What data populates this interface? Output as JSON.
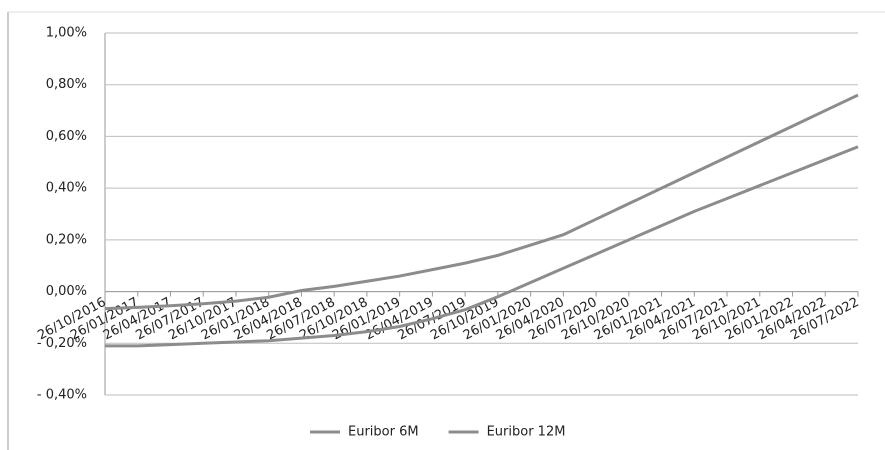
{
  "chart_data": {
    "type": "line",
    "categories": [
      "26/10/2016",
      "26/01/2017",
      "26/04/2017",
      "26/07/2017",
      "26/10/2017",
      "26/01/2018",
      "26/04/2018",
      "26/07/2018",
      "26/10/2018",
      "26/01/2019",
      "26/04/2019",
      "26/07/2019",
      "26/10/2019",
      "26/01/2020",
      "26/04/2020",
      "26/07/2020",
      "26/10/2020",
      "26/01/2021",
      "26/04/2021",
      "26/07/2021",
      "26/10/2021",
      "26/01/2022",
      "26/04/2022",
      "26/07/2022"
    ],
    "series": [
      {
        "name": "Euribor 6M",
        "color": "#8c8c8c",
        "values": [
          -0.21,
          -0.21,
          -0.205,
          -0.2,
          -0.195,
          -0.19,
          -0.18,
          -0.17,
          -0.155,
          -0.135,
          -0.105,
          -0.07,
          -0.02,
          0.035,
          0.09,
          0.145,
          0.2,
          0.255,
          0.31,
          0.36,
          0.41,
          0.46,
          0.51,
          0.56
        ]
      },
      {
        "name": "Euribor 12M",
        "color": "#8c8c8c",
        "values": [
          -0.066,
          -0.061,
          -0.055,
          -0.047,
          -0.037,
          -0.022,
          0.004,
          0.02,
          0.04,
          0.06,
          0.085,
          0.11,
          0.14,
          0.18,
          0.22,
          0.28,
          0.34,
          0.4,
          0.46,
          0.52,
          0.58,
          0.64,
          0.7,
          0.76
        ]
      }
    ],
    "ylim": [
      -0.4,
      1.0
    ],
    "yticks": [
      {
        "value": -0.4,
        "label": "- 0,40%"
      },
      {
        "value": -0.2,
        "label": "- 0,20%"
      },
      {
        "value": 0,
        "label": "0,00%"
      },
      {
        "value": 0.2,
        "label": "0,20%"
      },
      {
        "value": 0.4,
        "label": "0,40%"
      },
      {
        "value": 0.6,
        "label": "0,60%"
      },
      {
        "value": 0.8,
        "label": "0,80%"
      },
      {
        "value": 1.0,
        "label": "1,00%"
      }
    ],
    "grid": true,
    "legend": "bottom"
  }
}
